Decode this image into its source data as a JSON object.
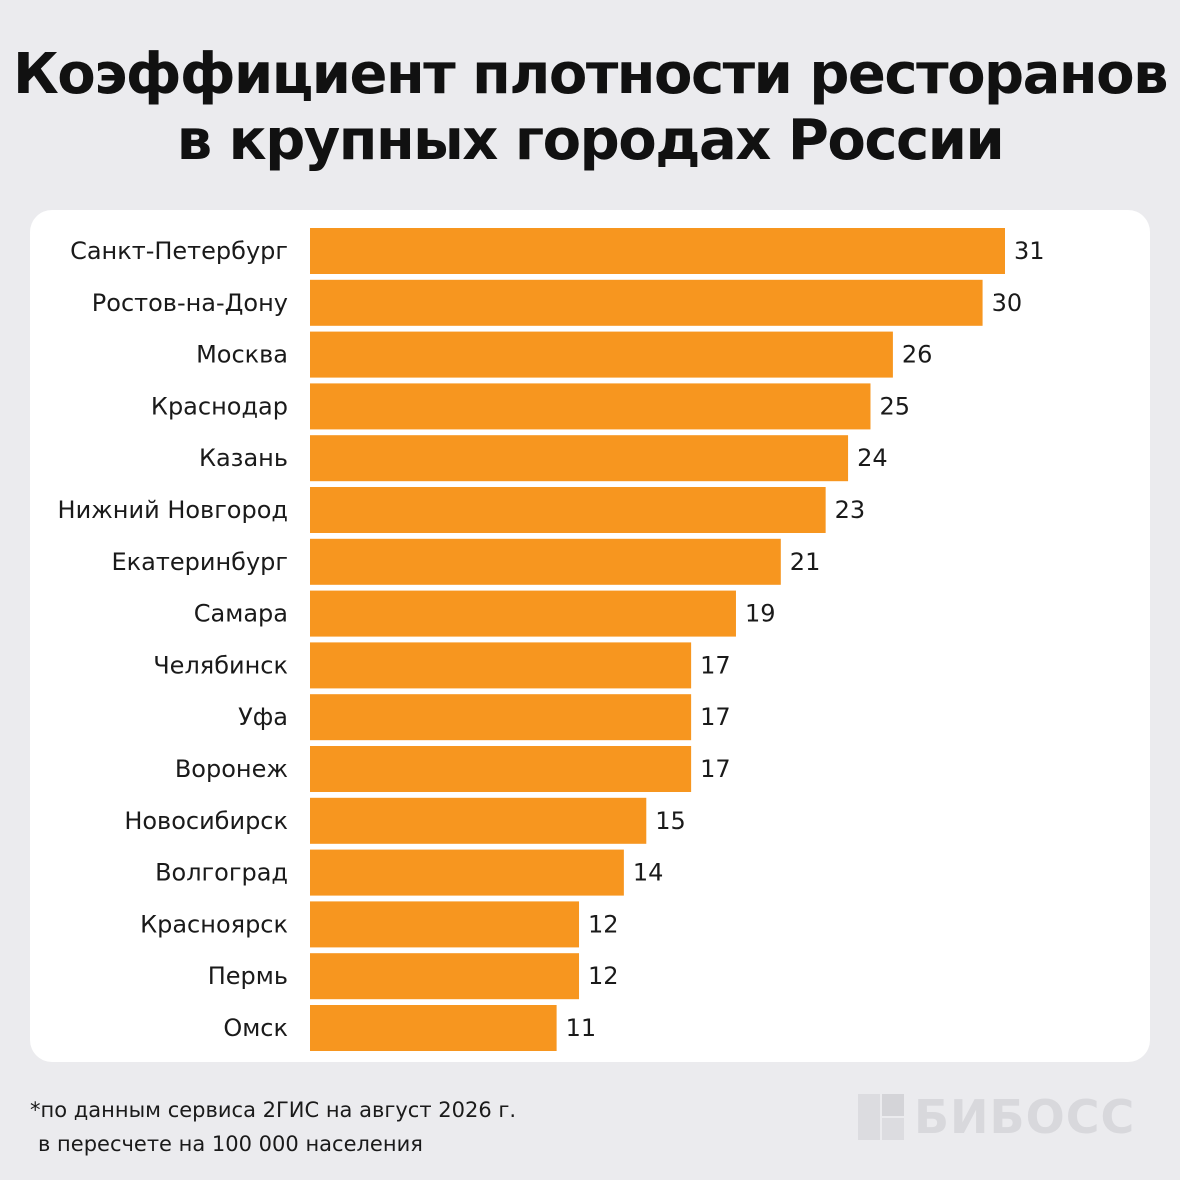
{
  "header": {
    "title_line1": "Коэффициент плотности ресторанов",
    "title_line2": "в крупных городах России"
  },
  "chart_data": {
    "type": "bar",
    "orientation": "horizontal",
    "categories": [
      "Санкт-Петербург",
      "Ростов-на-Дону",
      "Москва",
      "Краснодар",
      "Казань",
      "Нижний Новгород",
      "Екатеринбург",
      "Самара",
      "Челябинск",
      "Уфа",
      "Воронеж",
      "Новосибирск",
      "Волгоград",
      "Красноярск",
      "Пермь",
      "Омск"
    ],
    "values": [
      31,
      30,
      26,
      25,
      24,
      23,
      21,
      19,
      17,
      17,
      17,
      15,
      14,
      12,
      12,
      11
    ],
    "bar_color": "#f7961f",
    "xlim": [
      0,
      31
    ],
    "grid": false,
    "data_labels": true
  },
  "footnote": {
    "line1": "*по данным сервиса 2ГИС на август 2026 г.",
    "line2": "в пересчете на 100 000 населения"
  },
  "brand": {
    "name": "БИБОСС"
  }
}
